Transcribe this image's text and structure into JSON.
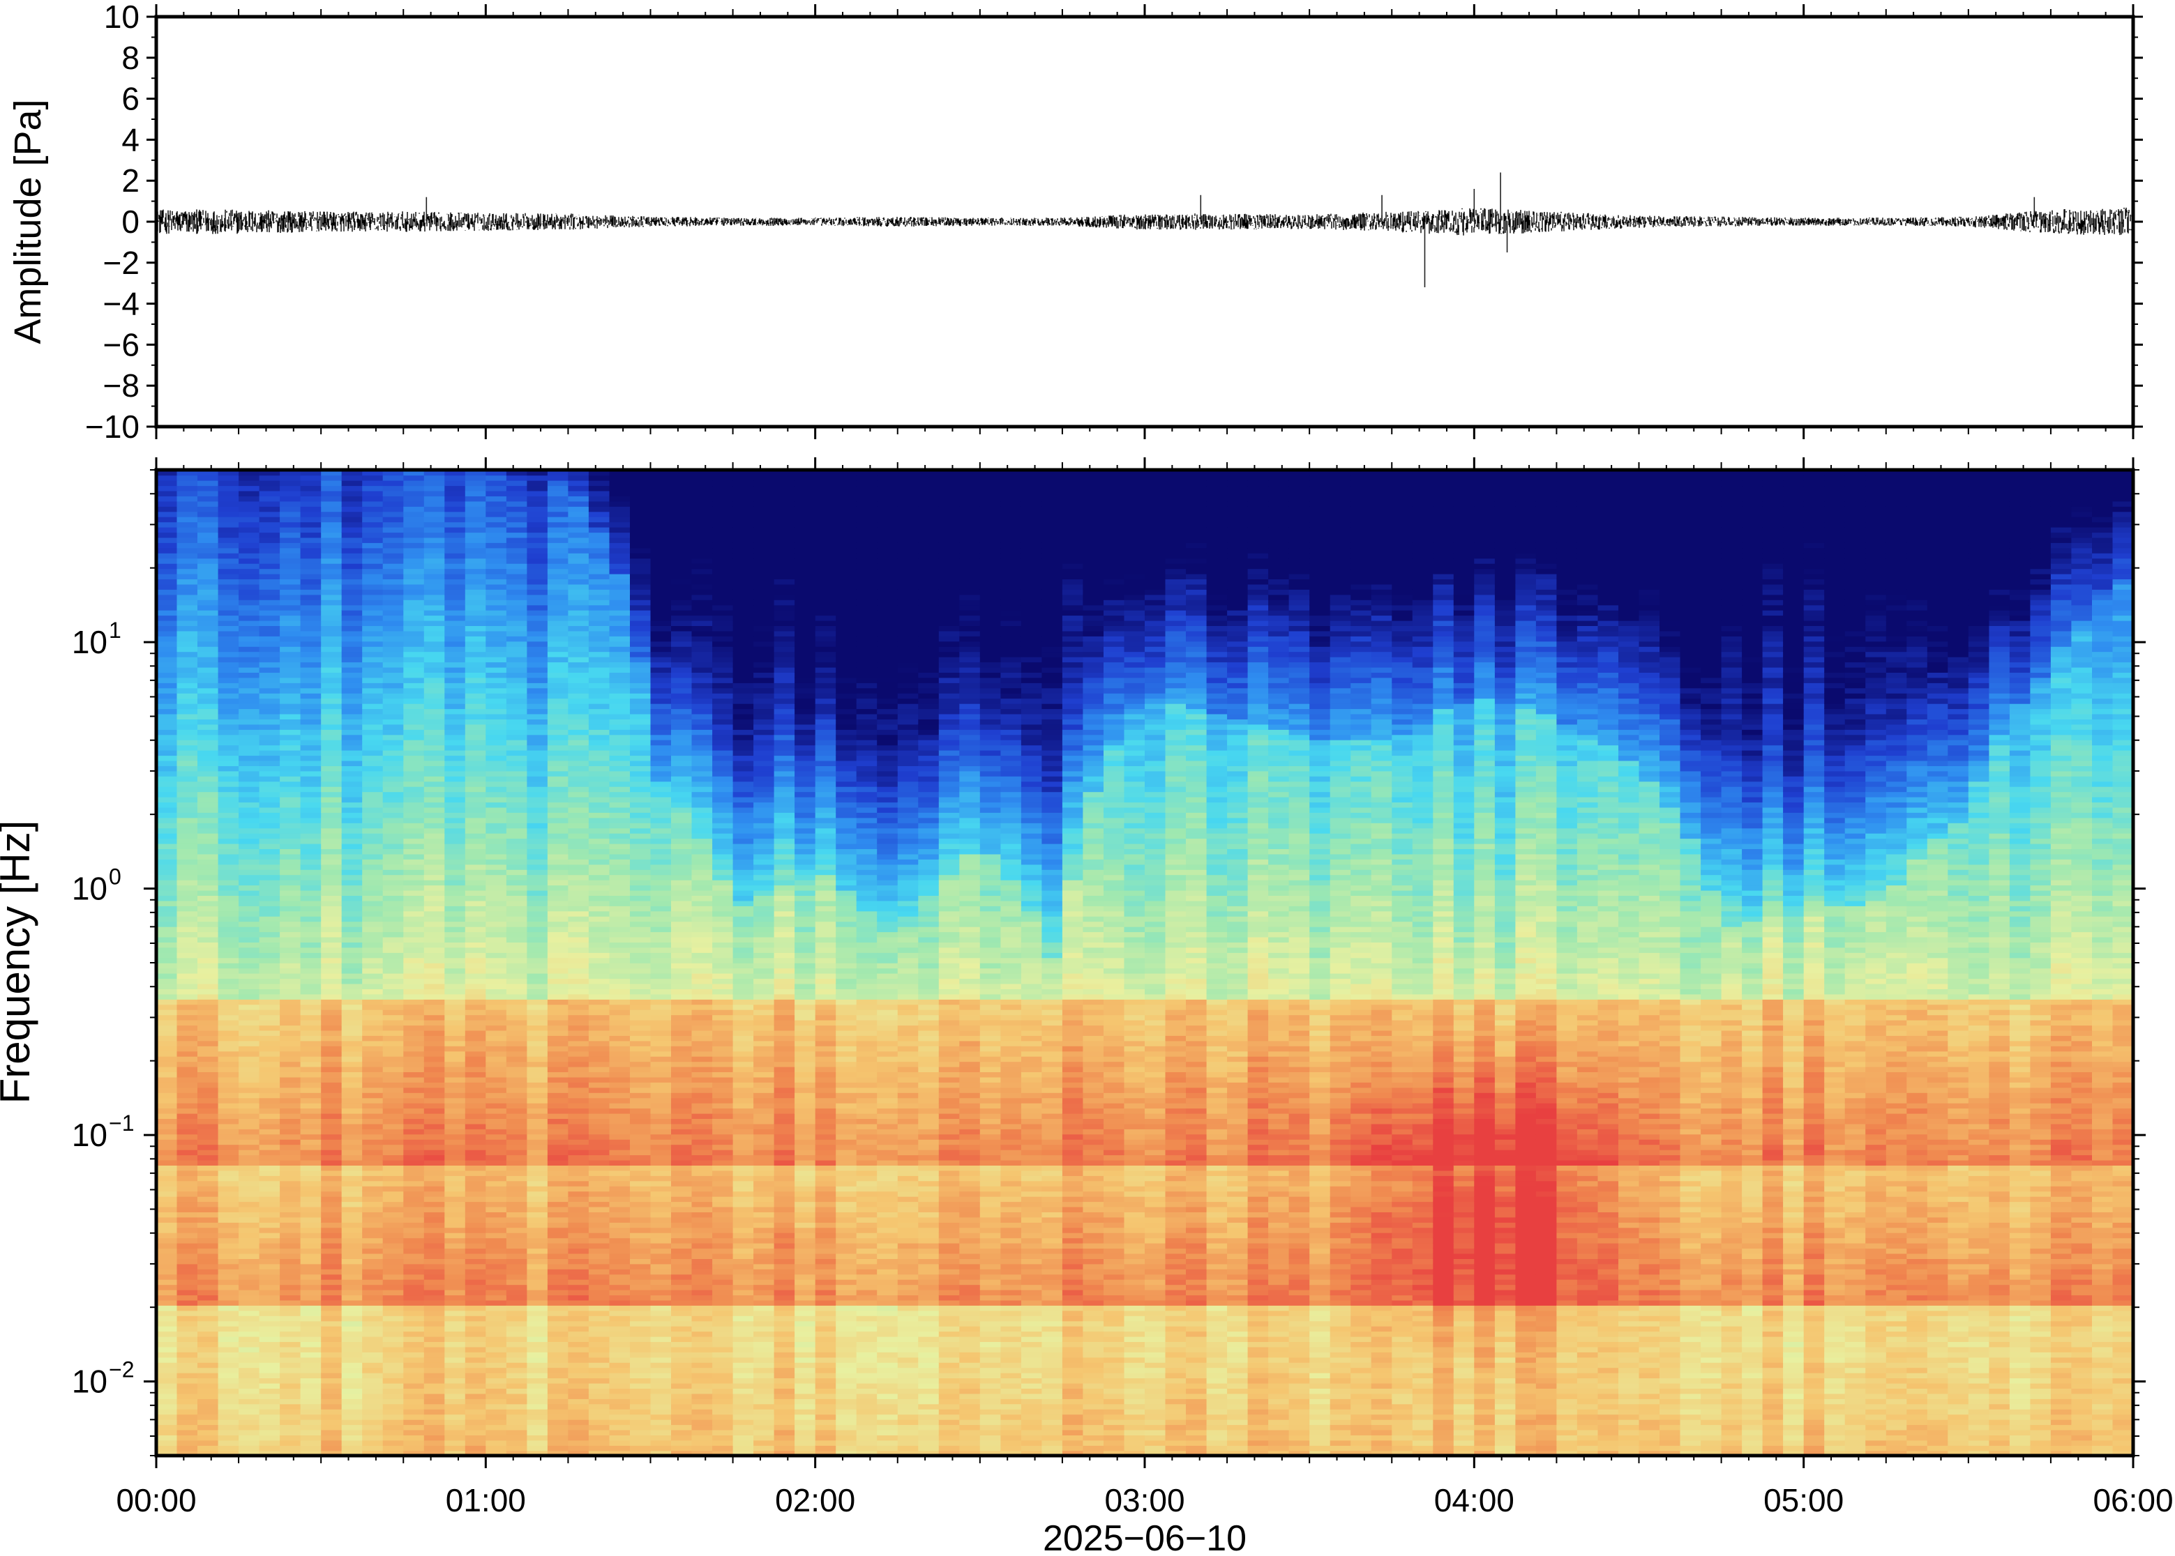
{
  "figure": {
    "date_label": "2025−06−10"
  },
  "chart_data": [
    {
      "type": "line",
      "panel": "waveform",
      "ylabel": "Amplitude [Pa]",
      "ylim": [
        -10,
        10
      ],
      "yticks": [
        -10,
        -8,
        -6,
        -4,
        -2,
        0,
        2,
        4,
        6,
        8,
        10
      ],
      "ytick_labels": [
        "−10",
        "−8",
        "−6",
        "−4",
        "−2",
        "0",
        "2",
        "4",
        "6",
        "8",
        "10"
      ],
      "x_hours": [
        0,
        6
      ],
      "envelope": {
        "x": [
          0,
          0.25,
          0.5,
          0.75,
          1.0,
          1.25,
          1.5,
          1.75,
          2.0,
          2.25,
          2.5,
          2.75,
          3.0,
          3.25,
          3.5,
          3.75,
          4.0,
          4.25,
          4.5,
          4.75,
          5.0,
          5.25,
          5.5,
          5.75,
          6.0
        ],
        "values": [
          0.6,
          0.6,
          0.5,
          0.5,
          0.45,
          0.4,
          0.25,
          0.2,
          0.2,
          0.25,
          0.2,
          0.2,
          0.4,
          0.4,
          0.35,
          0.5,
          0.7,
          0.5,
          0.3,
          0.25,
          0.2,
          0.2,
          0.25,
          0.6,
          0.7
        ]
      },
      "spikes": [
        {
          "x": 0.82,
          "y": 1.2
        },
        {
          "x": 3.17,
          "y": 1.3
        },
        {
          "x": 3.72,
          "y": 1.3
        },
        {
          "x": 3.85,
          "y": -3.2
        },
        {
          "x": 4.0,
          "y": 1.6
        },
        {
          "x": 4.08,
          "y": 2.4
        },
        {
          "x": 4.1,
          "y": -1.5
        },
        {
          "x": 5.7,
          "y": 1.2
        }
      ]
    },
    {
      "type": "heatmap",
      "panel": "spectrogram",
      "ylabel": "Frequency [Hz]",
      "yscale": "log",
      "ylim": [
        0.005,
        50
      ],
      "ytick_labels": [
        {
          "base": "10",
          "exp": "−2",
          "value": 0.01
        },
        {
          "base": "10",
          "exp": "−1",
          "value": 0.1
        },
        {
          "base": "10",
          "exp": "0",
          "value": 1
        },
        {
          "base": "10",
          "exp": "1",
          "value": 10
        }
      ],
      "xticks": [
        "00:00",
        "01:00",
        "02:00",
        "03:00",
        "04:00",
        "05:00",
        "06:00"
      ],
      "x_hours": [
        0,
        6
      ],
      "colormap": [
        "#0a0a6e",
        "#1f3fd0",
        "#2f8df0",
        "#48d8f0",
        "#9fe8b0",
        "#e8f0a0",
        "#f5c670",
        "#f08a50",
        "#e84040"
      ],
      "time_hours": [
        0,
        0.25,
        0.5,
        0.75,
        1.0,
        1.25,
        1.5,
        1.75,
        2.0,
        2.25,
        2.5,
        2.75,
        3.0,
        3.25,
        3.5,
        3.75,
        4.0,
        4.25,
        4.5,
        4.75,
        5.0,
        5.25,
        5.5,
        5.75,
        6.0
      ],
      "high_freq_cutoff_hz": [
        50,
        50,
        50,
        50,
        50,
        45,
        3,
        0.8,
        1.2,
        0.6,
        1.5,
        0.4,
        6,
        5,
        4,
        4,
        6,
        5,
        3,
        0.7,
        0.8,
        0.9,
        2,
        8,
        20
      ],
      "microbarom_band_hz": [
        0.15,
        0.3
      ],
      "peak_energy": {
        "x_hours": 4.05,
        "y_hz": 0.05
      }
    }
  ]
}
